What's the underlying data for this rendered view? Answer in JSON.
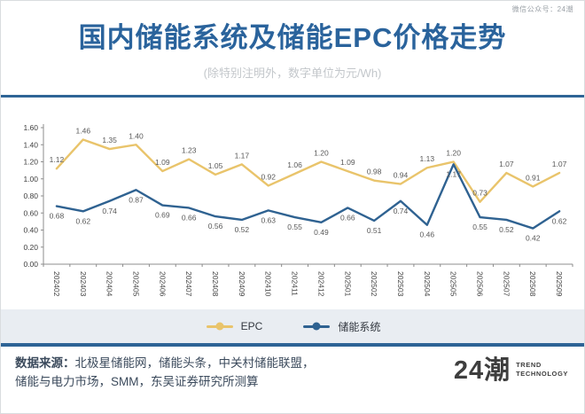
{
  "meta": {
    "wechat_label": "微信公众号：24潮"
  },
  "header": {
    "title": "国内储能系统及储能EPC价格走势",
    "subtitle": "(除特别注明外，数字单位为元/Wh)"
  },
  "chart_data": {
    "type": "line",
    "title": "国内储能系统及储能EPC价格走势",
    "xlabel": "",
    "ylabel": "",
    "ylim": [
      0,
      1.6
    ],
    "ytick_step": 0.2,
    "grid": false,
    "legend_position": "bottom",
    "categories": [
      "202402",
      "202403",
      "202404",
      "202405",
      "202406",
      "202407",
      "202408",
      "202409",
      "202410",
      "202411",
      "202412",
      "202501",
      "202502",
      "202503",
      "202504",
      "202505",
      "202506",
      "202507",
      "202508",
      "202509"
    ],
    "series": [
      {
        "name": "EPC",
        "color": "#E9C46B",
        "values": [
          1.12,
          1.46,
          1.35,
          1.4,
          1.09,
          1.23,
          1.05,
          1.17,
          0.92,
          1.06,
          1.2,
          1.09,
          0.98,
          0.94,
          1.13,
          1.2,
          0.73,
          1.07,
          0.91,
          1.07
        ]
      },
      {
        "name": "储能系统",
        "color": "#2F6291",
        "values": [
          0.68,
          0.62,
          0.74,
          0.87,
          0.69,
          0.66,
          0.56,
          0.52,
          0.63,
          0.55,
          0.49,
          0.66,
          0.51,
          0.74,
          0.46,
          1.17,
          0.55,
          0.52,
          0.42,
          0.62
        ]
      }
    ]
  },
  "footer": {
    "source_label": "数据来源：",
    "source_line1": "北极星储能网，储能头条，中关村储能联盟，",
    "source_line2": "储能与电力市场，SMM，东吴证券研究所测算",
    "logo_text": "24潮",
    "logo_sub1": "TREND",
    "logo_sub2": "TECHNOLOGY"
  },
  "colors": {
    "title_blue": "#2A639C",
    "rule_blue": "#2E6496",
    "legend_band": "#E9EDF2",
    "axis_gray": "#8C8C8C",
    "tick_label": "#404040",
    "data_label": "#595959"
  }
}
